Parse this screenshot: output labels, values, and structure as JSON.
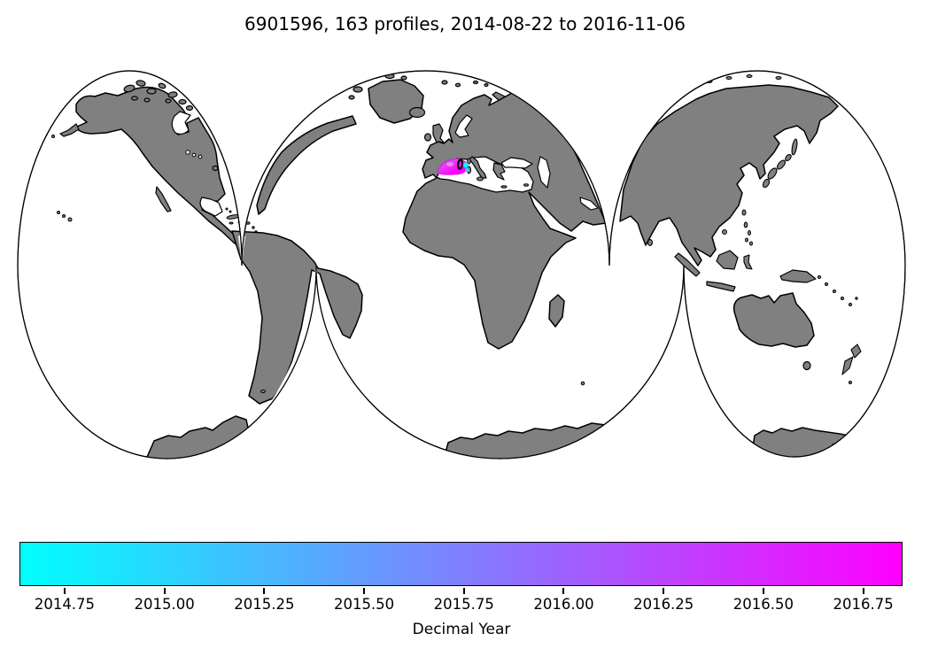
{
  "figure": {
    "title": "6901596, 163 profiles, 2014-08-22 to 2016-11-06",
    "background_color": "#ffffff"
  },
  "map": {
    "projection": "interrupted world map (three lobes)",
    "land_color": "#808080",
    "ocean_color": "#ffffff",
    "coastline_color": "#000000",
    "cluster": {
      "description": "163 profile positions clustered in the western Mediterranean Sea",
      "early_color": "#00ffff",
      "late_color": "#ff00ff",
      "last_position_marker": "black ellipse outline"
    }
  },
  "chart_data": {
    "type": "map-scatter",
    "title": "6901596, 163 profiles, 2014-08-22 to 2016-11-06",
    "float_id": "6901596",
    "n_profiles": 163,
    "date_start": "2014-08-22",
    "date_end": "2016-11-06",
    "track_location": "western Mediterranean Sea",
    "colorbar": {
      "label": "Decimal Year",
      "colormap": "cool",
      "start_color": "#00ffff",
      "end_color": "#ff00ff",
      "vmin": 2014.637,
      "vmax": 2016.852,
      "ticks": [
        2014.75,
        2015.0,
        2015.25,
        2015.5,
        2015.75,
        2016.0,
        2016.25,
        2016.5,
        2016.75
      ]
    }
  }
}
